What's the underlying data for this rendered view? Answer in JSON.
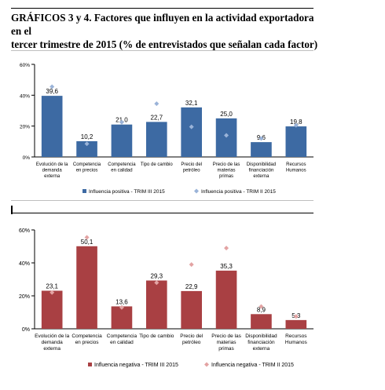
{
  "header": {
    "title_line1": "GRÁFICOS 3 y 4. Factores que influyen en la actividad exportadora en el",
    "title_line2": "tercer trimestre de 2015 (% de entrevistados que señalan cada factor)"
  },
  "chart_data": [
    {
      "type": "bar",
      "categories": [
        [
          "Evolución de la",
          "demanda",
          "externa"
        ],
        [
          "Competencia",
          "en precios"
        ],
        [
          "Competencia",
          "en calidad"
        ],
        [
          "Tipo de cambio"
        ],
        [
          "Precio del",
          "petróleo"
        ],
        [
          "Precio de las",
          "materias",
          "primas"
        ],
        [
          "Disponibilidad",
          "financiación",
          "externa"
        ],
        [
          "Recursos",
          "Humanos"
        ]
      ],
      "yticks": [
        "0%",
        "20%",
        "40%",
        "60%"
      ],
      "ylim": [
        0,
        60
      ],
      "series": [
        {
          "name": "Influencia positiva - TRIM III 2015",
          "kind": "bar",
          "color": "#3d6aa3",
          "values": [
            39.6,
            10.2,
            21.0,
            22.7,
            32.1,
            25.0,
            9.6,
            19.8
          ],
          "labels": [
            "39,6",
            "10,2",
            "21,0",
            "22,7",
            "32,1",
            "25,0",
            "9,6",
            "19,8"
          ]
        },
        {
          "name": "Influencia positiva - TRIM II 2015",
          "kind": "marker",
          "color": "#9ab3d8",
          "values": [
            45.5,
            8.5,
            22.5,
            34.5,
            19.5,
            14.0,
            12.0,
            20.5
          ]
        }
      ],
      "grid": false,
      "legend": "bottom"
    },
    {
      "type": "bar",
      "categories": [
        [
          "Evolución de la",
          "demanda",
          "externa"
        ],
        [
          "Competencia",
          "en precios"
        ],
        [
          "Competencia",
          "en calidad"
        ],
        [
          "Tipo de cambio"
        ],
        [
          "Precio del",
          "petróleo"
        ],
        [
          "Precio de las",
          "materias",
          "primas"
        ],
        [
          "Disponibilidad",
          "financiación",
          "externa"
        ],
        [
          "Recursos",
          "Humanos"
        ]
      ],
      "yticks": [
        "0%",
        "20%",
        "40%",
        "60%"
      ],
      "ylim": [
        0,
        60
      ],
      "series": [
        {
          "name": "Influencia negativa - TRIM III 2015",
          "kind": "bar",
          "color": "#a94043",
          "values": [
            23.1,
            50.1,
            13.6,
            29.3,
            22.9,
            35.3,
            8.9,
            5.3
          ],
          "labels": [
            "23,1",
            "50,1",
            "13,6",
            "29,3",
            "22,9",
            "35,3",
            "8,9",
            "5,3"
          ]
        },
        {
          "name": "Influencia negativa - TRIM II 2015",
          "kind": "marker",
          "color": "#e3a3a3",
          "values": [
            22.0,
            55.5,
            13.0,
            28.0,
            39.0,
            49.0,
            13.5,
            7.5
          ]
        }
      ],
      "grid": false,
      "legend": "bottom"
    }
  ]
}
